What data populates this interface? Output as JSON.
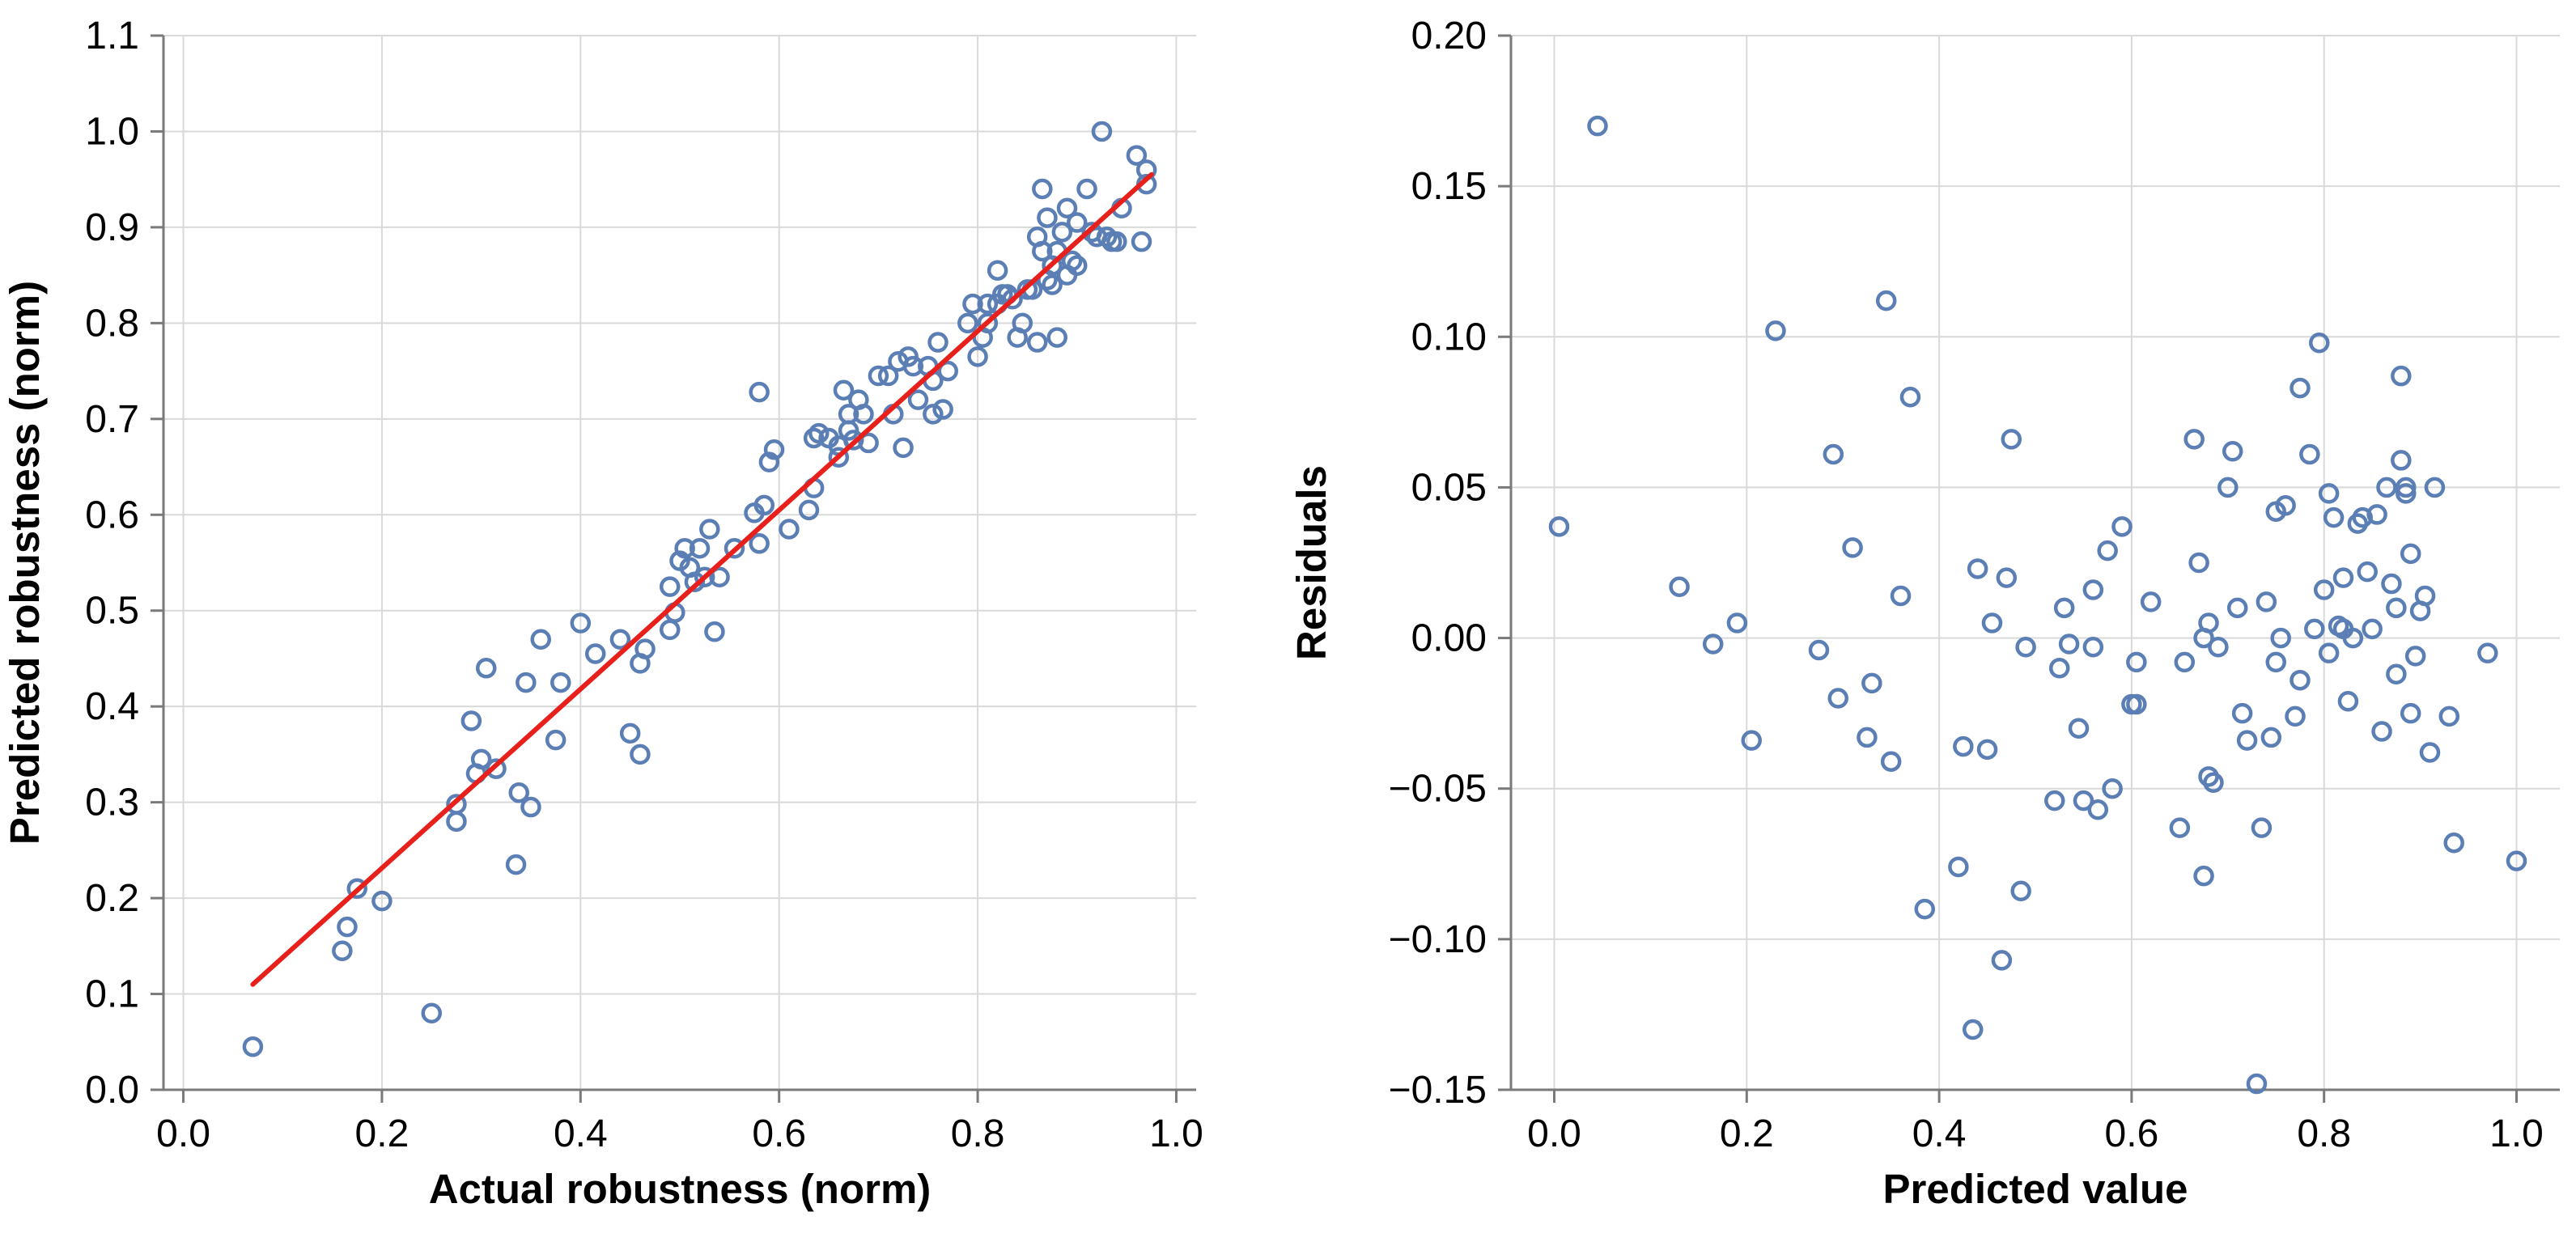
{
  "colors": {
    "point": "#5b7fb5",
    "fit_line": "#e8201c",
    "grid": "#d9d9d9",
    "axis": "#7a7a7a"
  },
  "chart_data": [
    {
      "type": "scatter",
      "xlabel": "Actual robustness (norm)",
      "ylabel": "Predicted robustness (norm)",
      "xlim": [
        -0.02,
        1.02
      ],
      "ylim": [
        0.0,
        1.1
      ],
      "xticks": [
        "0.0",
        "0.2",
        "0.4",
        "0.6",
        "0.8",
        "1.0"
      ],
      "yticks": [
        "0.0",
        "0.1",
        "0.2",
        "0.3",
        "0.4",
        "0.5",
        "0.6",
        "0.7",
        "0.8",
        "0.9",
        "1.0",
        "1.1"
      ],
      "grid": true,
      "fit_line": {
        "x": [
          0.07,
          0.975
        ],
        "y": [
          0.11,
          0.955
        ]
      },
      "points": {
        "x": [
          0.07,
          0.16,
          0.165,
          0.175,
          0.2,
          0.25,
          0.275,
          0.275,
          0.29,
          0.295,
          0.3,
          0.305,
          0.315,
          0.335,
          0.338,
          0.345,
          0.35,
          0.36,
          0.375,
          0.38,
          0.4,
          0.415,
          0.44,
          0.45,
          0.46,
          0.46,
          0.465,
          0.49,
          0.49,
          0.495,
          0.5,
          0.505,
          0.51,
          0.515,
          0.52,
          0.525,
          0.53,
          0.535,
          0.54,
          0.555,
          0.575,
          0.58,
          0.58,
          0.585,
          0.59,
          0.595,
          0.61,
          0.63,
          0.635,
          0.635,
          0.64,
          0.65,
          0.66,
          0.66,
          0.665,
          0.67,
          0.67,
          0.675,
          0.68,
          0.685,
          0.69,
          0.7,
          0.71,
          0.715,
          0.72,
          0.725,
          0.73,
          0.735,
          0.74,
          0.75,
          0.755,
          0.755,
          0.76,
          0.765,
          0.77,
          0.79,
          0.795,
          0.8,
          0.805,
          0.81,
          0.81,
          0.82,
          0.82,
          0.825,
          0.83,
          0.835,
          0.84,
          0.845,
          0.85,
          0.855,
          0.86,
          0.86,
          0.865,
          0.865,
          0.87,
          0.87,
          0.875,
          0.875,
          0.88,
          0.88,
          0.885,
          0.89,
          0.89,
          0.895,
          0.9,
          0.9,
          0.91,
          0.915,
          0.92,
          0.925,
          0.93,
          0.935,
          0.94,
          0.945,
          0.96,
          0.965,
          0.97,
          0.97
        ],
        "y": [
          0.045,
          0.145,
          0.17,
          0.21,
          0.197,
          0.08,
          0.28,
          0.298,
          0.385,
          0.33,
          0.345,
          0.44,
          0.335,
          0.235,
          0.31,
          0.425,
          0.295,
          0.47,
          0.365,
          0.425,
          0.487,
          0.455,
          0.47,
          0.372,
          0.35,
          0.445,
          0.46,
          0.525,
          0.48,
          0.498,
          0.552,
          0.565,
          0.545,
          0.53,
          0.565,
          0.535,
          0.585,
          0.478,
          0.535,
          0.565,
          0.602,
          0.728,
          0.57,
          0.61,
          0.655,
          0.668,
          0.585,
          0.605,
          0.628,
          0.68,
          0.685,
          0.68,
          0.66,
          0.672,
          0.73,
          0.688,
          0.705,
          0.678,
          0.72,
          0.705,
          0.675,
          0.745,
          0.745,
          0.705,
          0.76,
          0.67,
          0.765,
          0.755,
          0.72,
          0.755,
          0.705,
          0.74,
          0.78,
          0.71,
          0.75,
          0.8,
          0.82,
          0.765,
          0.785,
          0.8,
          0.82,
          0.855,
          0.82,
          0.83,
          0.83,
          0.825,
          0.785,
          0.8,
          0.835,
          0.835,
          0.78,
          0.89,
          0.875,
          0.94,
          0.845,
          0.91,
          0.84,
          0.86,
          0.875,
          0.785,
          0.895,
          0.92,
          0.85,
          0.865,
          0.905,
          0.86,
          0.94,
          0.895,
          0.89,
          1.0,
          0.89,
          0.885,
          0.885,
          0.92,
          0.975,
          0.885,
          0.945,
          0.96
        ]
      }
    },
    {
      "type": "scatter",
      "xlabel": "Predicted value",
      "ylabel": "Residuals",
      "xlim": [
        -0.045,
        1.045
      ],
      "ylim": [
        -0.15,
        0.2
      ],
      "xticks": [
        "0.0",
        "0.2",
        "0.4",
        "0.6",
        "0.8",
        "1.0"
      ],
      "yticks": [
        "−0.15",
        "−0.10",
        "−0.05",
        "0.00",
        "0.05",
        "0.10",
        "0.15",
        "0.20"
      ],
      "grid": true,
      "points": {
        "x": [
          0.045,
          0.005,
          0.13,
          0.165,
          0.19,
          0.205,
          0.23,
          0.275,
          0.29,
          0.295,
          0.31,
          0.325,
          0.33,
          0.345,
          0.35,
          0.36,
          0.37,
          0.385,
          0.42,
          0.425,
          0.435,
          0.44,
          0.45,
          0.455,
          0.465,
          0.47,
          0.475,
          0.485,
          0.49,
          0.52,
          0.525,
          0.53,
          0.535,
          0.545,
          0.55,
          0.56,
          0.56,
          0.565,
          0.575,
          0.58,
          0.59,
          0.6,
          0.605,
          0.605,
          0.62,
          0.65,
          0.655,
          0.665,
          0.67,
          0.675,
          0.675,
          0.68,
          0.68,
          0.685,
          0.69,
          0.7,
          0.705,
          0.71,
          0.715,
          0.72,
          0.73,
          0.735,
          0.74,
          0.745,
          0.75,
          0.75,
          0.755,
          0.76,
          0.77,
          0.775,
          0.775,
          0.785,
          0.79,
          0.795,
          0.8,
          0.805,
          0.805,
          0.81,
          0.815,
          0.82,
          0.82,
          0.825,
          0.83,
          0.835,
          0.84,
          0.845,
          0.85,
          0.855,
          0.86,
          0.865,
          0.87,
          0.875,
          0.875,
          0.88,
          0.88,
          0.885,
          0.885,
          0.89,
          0.89,
          0.895,
          0.9,
          0.905,
          0.91,
          0.915,
          0.93,
          0.935,
          0.97,
          1.0
        ],
        "y": [
          0.17,
          0.037,
          0.017,
          -0.002,
          0.005,
          -0.034,
          0.102,
          -0.004,
          0.061,
          -0.02,
          0.03,
          -0.033,
          -0.015,
          0.112,
          -0.041,
          0.014,
          0.08,
          -0.09,
          -0.076,
          -0.036,
          -0.13,
          0.023,
          -0.037,
          0.005,
          -0.107,
          0.02,
          0.066,
          -0.084,
          -0.003,
          -0.054,
          -0.01,
          0.01,
          -0.002,
          -0.03,
          -0.054,
          0.016,
          -0.003,
          -0.057,
          0.029,
          -0.05,
          0.037,
          -0.022,
          -0.022,
          -0.008,
          0.012,
          -0.063,
          -0.008,
          0.066,
          0.025,
          -0.079,
          0.0,
          0.005,
          -0.046,
          -0.048,
          -0.003,
          0.05,
          0.062,
          0.01,
          -0.025,
          -0.034,
          -0.148,
          -0.063,
          0.012,
          -0.033,
          0.042,
          -0.008,
          0.0,
          0.044,
          -0.026,
          0.083,
          -0.014,
          0.061,
          0.003,
          0.098,
          0.016,
          -0.005,
          0.048,
          0.04,
          0.004,
          0.003,
          0.02,
          -0.021,
          0.0,
          0.038,
          0.04,
          0.022,
          0.003,
          0.041,
          -0.031,
          0.05,
          0.018,
          -0.012,
          0.01,
          0.087,
          0.059,
          0.05,
          0.048,
          0.028,
          -0.025,
          -0.006,
          0.009,
          0.014,
          -0.038,
          0.05,
          -0.026,
          -0.068,
          -0.005,
          -0.074
        ]
      }
    }
  ]
}
